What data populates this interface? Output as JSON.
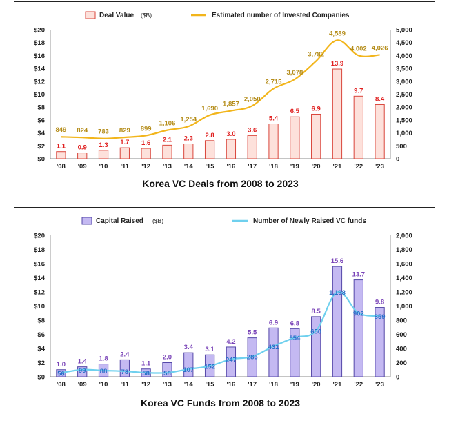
{
  "chart_data": [
    {
      "type": "bar",
      "title": "Korea VC Deals from 2008 to 2023",
      "categories": [
        "'08",
        "'09",
        "'10",
        "'11",
        "'12",
        "'13",
        "'14",
        "'15",
        "'16",
        "'17",
        "'18",
        "'19",
        "'20",
        "'21",
        "'22",
        "'23"
      ],
      "series": [
        {
          "name": "Deal Value",
          "name_suffix": "($B)",
          "type": "bar",
          "axis": "left",
          "values": [
            1.1,
            0.9,
            1.3,
            1.7,
            1.6,
            2.1,
            2.3,
            2.8,
            3.0,
            3.6,
            5.4,
            6.5,
            6.9,
            13.9,
            9.7,
            8.4
          ],
          "labels": [
            "1.1",
            "0.9",
            "1.3",
            "1.7",
            "1.6",
            "2.1",
            "2.3",
            "2.8",
            "3.0",
            "3.6",
            "5.4",
            "6.5",
            "6.9",
            "13.9",
            "9.7",
            "8.4"
          ]
        },
        {
          "name": "Estimated number of Invested Companies",
          "type": "line",
          "axis": "right",
          "values": [
            849,
            824,
            783,
            829,
            899,
            1106,
            1254,
            1690,
            1857,
            2050,
            2715,
            3078,
            3782,
            4589,
            4002,
            4026
          ],
          "labels": [
            "849",
            "824",
            "783",
            "829",
            "899",
            "1,106",
            "1,254",
            "1,690",
            "1,857",
            "2,050",
            "2,715",
            "3,078",
            "3,782",
            "4,589",
            "4,002",
            "4,026"
          ]
        }
      ],
      "yticks_left": [
        "$0",
        "$2",
        "$4",
        "$6",
        "$8",
        "$10",
        "$12",
        "$14",
        "$16",
        "$18",
        "$20"
      ],
      "yticks_right": [
        "0",
        "500",
        "1,000",
        "1,500",
        "2,000",
        "2,500",
        "3,000",
        "3,500",
        "4,000",
        "4,500",
        "5,000"
      ],
      "ylim_left": [
        0,
        20
      ],
      "ylim_right": [
        0,
        5000
      ],
      "legend_position": "top",
      "colors": {
        "bar_fill": "#fde1db",
        "bar_stroke": "#d9453b",
        "bar_label": "#e02020",
        "line": "#f2b51b",
        "line_label": "#b58d1a"
      }
    },
    {
      "type": "bar",
      "title": "Korea VC Funds from 2008 to 2023",
      "categories": [
        "'08",
        "'09",
        "'10",
        "'11",
        "'12",
        "'13",
        "'14",
        "'15",
        "'16",
        "'17",
        "'18",
        "'19",
        "'20",
        "'21",
        "'22",
        "'23"
      ],
      "series": [
        {
          "name": "Capital Raised",
          "name_suffix": "($B)",
          "type": "bar",
          "axis": "left",
          "values": [
            1.0,
            1.4,
            1.8,
            2.4,
            1.1,
            2.0,
            3.4,
            3.1,
            4.2,
            5.5,
            6.9,
            6.8,
            8.5,
            15.6,
            13.7,
            9.8
          ],
          "labels": [
            "1.0",
            "1.4",
            "1.8",
            "2.4",
            "1.1",
            "2.0",
            "3.4",
            "3.1",
            "4.2",
            "5.5",
            "6.9",
            "6.8",
            "8.5",
            "15.6",
            "13.7",
            "9.8"
          ]
        },
        {
          "name": "Number of Newly Raised VC funds",
          "type": "line",
          "axis": "right",
          "values": [
            56,
            99,
            88,
            78,
            58,
            58,
            107,
            152,
            247,
            286,
            431,
            554,
            650,
            1198,
            902,
            859
          ],
          "labels": [
            "56",
            "99",
            "88",
            "78",
            "58",
            "58",
            "107",
            "152",
            "247",
            "286",
            "431",
            "554",
            "650",
            "1,198",
            "902",
            "859"
          ]
        }
      ],
      "yticks_left": [
        "$0",
        "$2",
        "$4",
        "$6",
        "$8",
        "$10",
        "$12",
        "$14",
        "$16",
        "$18",
        "$20"
      ],
      "yticks_right": [
        "0",
        "200",
        "400",
        "600",
        "800",
        "1,000",
        "1,200",
        "1,400",
        "1,600",
        "1,800",
        "2,000"
      ],
      "ylim_left": [
        0,
        20
      ],
      "ylim_right": [
        0,
        2000
      ],
      "legend_position": "top",
      "colors": {
        "bar_fill": "#c4b9f2",
        "bar_stroke": "#5548a8",
        "bar_label": "#7a44b8",
        "line": "#6fd0ee",
        "line_label": "#2a6fc9"
      }
    }
  ]
}
